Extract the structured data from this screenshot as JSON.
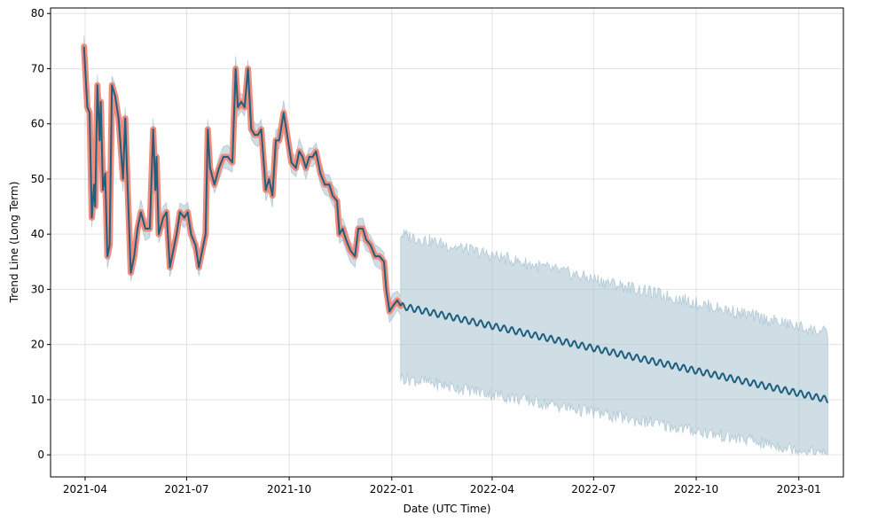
{
  "chart_data": {
    "type": "line",
    "title": "",
    "xlabel": "Date (UTC Time)",
    "ylabel": "Trend Line (Long Term)",
    "xlim": [
      "2021-03-01",
      "2023-02-10"
    ],
    "ylim": [
      -4,
      81
    ],
    "grid": true,
    "x_ticks": [
      {
        "date": "2021-04-01",
        "label": "2021-04"
      },
      {
        "date": "2021-07-01",
        "label": "2021-07"
      },
      {
        "date": "2021-10-01",
        "label": "2021-10"
      },
      {
        "date": "2022-01-01",
        "label": "2022-01"
      },
      {
        "date": "2022-04-01",
        "label": "2022-04"
      },
      {
        "date": "2022-07-01",
        "label": "2022-07"
      },
      {
        "date": "2022-10-01",
        "label": "2022-10"
      },
      {
        "date": "2023-01-01",
        "label": "2023-01"
      }
    ],
    "y_ticks": [
      0,
      10,
      20,
      30,
      40,
      50,
      60,
      70,
      80
    ],
    "colors": {
      "trend": "#1f5f7f",
      "history_highlight": "#f08c7c",
      "band": "#9fbccc"
    },
    "series": [
      {
        "role": "history",
        "points": [
          [
            "2021-03-31",
            74
          ],
          [
            "2021-04-03",
            63
          ],
          [
            "2021-04-05",
            62
          ],
          [
            "2021-04-07",
            43
          ],
          [
            "2021-04-09",
            49
          ],
          [
            "2021-04-10",
            45
          ],
          [
            "2021-04-12",
            67
          ],
          [
            "2021-04-14",
            57
          ],
          [
            "2021-04-15",
            64
          ],
          [
            "2021-04-17",
            48
          ],
          [
            "2021-04-19",
            51
          ],
          [
            "2021-04-21",
            36
          ],
          [
            "2021-04-23",
            38
          ],
          [
            "2021-04-25",
            67
          ],
          [
            "2021-04-28",
            65
          ],
          [
            "2021-05-01",
            61
          ],
          [
            "2021-05-05",
            50
          ],
          [
            "2021-05-07",
            61
          ],
          [
            "2021-05-09",
            49
          ],
          [
            "2021-05-12",
            33
          ],
          [
            "2021-05-15",
            36
          ],
          [
            "2021-05-18",
            41
          ],
          [
            "2021-05-21",
            44
          ],
          [
            "2021-05-25",
            41
          ],
          [
            "2021-05-29",
            41
          ],
          [
            "2021-06-01",
            59
          ],
          [
            "2021-06-03",
            48
          ],
          [
            "2021-06-04",
            54
          ],
          [
            "2021-06-06",
            40
          ],
          [
            "2021-06-10",
            43
          ],
          [
            "2021-06-13",
            44
          ],
          [
            "2021-06-16",
            34
          ],
          [
            "2021-06-19",
            37
          ],
          [
            "2021-06-22",
            40
          ],
          [
            "2021-06-25",
            44
          ],
          [
            "2021-06-29",
            43
          ],
          [
            "2021-07-02",
            44
          ],
          [
            "2021-07-05",
            40
          ],
          [
            "2021-07-09",
            38
          ],
          [
            "2021-07-12",
            34
          ],
          [
            "2021-07-15",
            37
          ],
          [
            "2021-07-18",
            40
          ],
          [
            "2021-07-20",
            59
          ],
          [
            "2021-07-22",
            52
          ],
          [
            "2021-07-26",
            49
          ],
          [
            "2021-07-30",
            52
          ],
          [
            "2021-08-03",
            54
          ],
          [
            "2021-08-07",
            54
          ],
          [
            "2021-08-11",
            53
          ],
          [
            "2021-08-14",
            70
          ],
          [
            "2021-08-16",
            63
          ],
          [
            "2021-08-19",
            64
          ],
          [
            "2021-08-22",
            63
          ],
          [
            "2021-08-25",
            70
          ],
          [
            "2021-08-28",
            59
          ],
          [
            "2021-08-31",
            58
          ],
          [
            "2021-09-03",
            58
          ],
          [
            "2021-09-06",
            59
          ],
          [
            "2021-09-10",
            48
          ],
          [
            "2021-09-13",
            50
          ],
          [
            "2021-09-16",
            47
          ],
          [
            "2021-09-19",
            57
          ],
          [
            "2021-09-22",
            57
          ],
          [
            "2021-09-26",
            62
          ],
          [
            "2021-09-30",
            57
          ],
          [
            "2021-10-03",
            53
          ],
          [
            "2021-10-07",
            52
          ],
          [
            "2021-10-10",
            55
          ],
          [
            "2021-10-13",
            54
          ],
          [
            "2021-10-16",
            52
          ],
          [
            "2021-10-19",
            54
          ],
          [
            "2021-10-22",
            54
          ],
          [
            "2021-10-25",
            55
          ],
          [
            "2021-10-29",
            51
          ],
          [
            "2021-11-02",
            49
          ],
          [
            "2021-11-06",
            49
          ],
          [
            "2021-11-09",
            47
          ],
          [
            "2021-11-13",
            46
          ],
          [
            "2021-11-15",
            40
          ],
          [
            "2021-11-18",
            41
          ],
          [
            "2021-11-21",
            39
          ],
          [
            "2021-11-25",
            37
          ],
          [
            "2021-11-29",
            36
          ],
          [
            "2021-12-02",
            41
          ],
          [
            "2021-12-06",
            41
          ],
          [
            "2021-12-09",
            39
          ],
          [
            "2021-12-13",
            38
          ],
          [
            "2021-12-17",
            36
          ],
          [
            "2021-12-21",
            36
          ],
          [
            "2021-12-25",
            35
          ],
          [
            "2021-12-27",
            30
          ],
          [
            "2021-12-30",
            26
          ],
          [
            "2022-01-02",
            27
          ],
          [
            "2022-01-06",
            28
          ],
          [
            "2022-01-09",
            27
          ]
        ]
      },
      {
        "role": "forecast",
        "start": [
          "2022-01-09",
          27
        ],
        "end": [
          "2023-01-27",
          10
        ],
        "weekly_wiggle": 0.6
      }
    ],
    "band": {
      "history_halfwidth": 1.5,
      "forecast_start": {
        "date": "2022-01-09",
        "lower": 14,
        "upper": 40
      },
      "forecast_end": {
        "date": "2023-01-27",
        "lower": 0,
        "upper": 22
      }
    }
  }
}
